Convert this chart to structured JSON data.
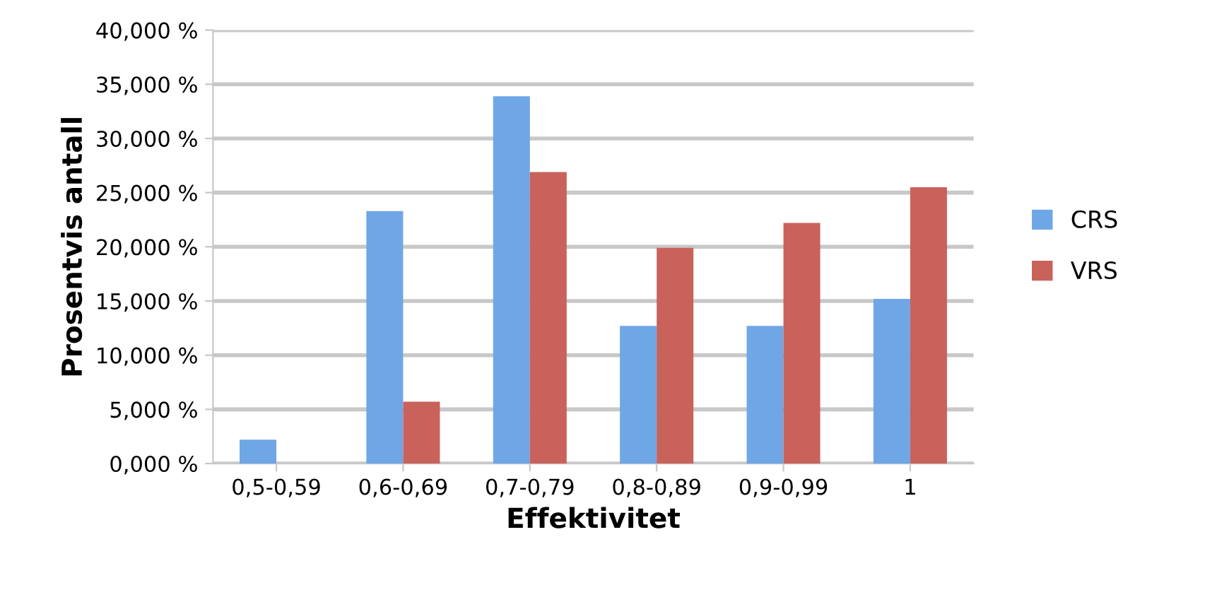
{
  "chart_data": {
    "type": "bar",
    "xlabel": "Effektivitet",
    "ylabel": "Prosentvis antall",
    "categories": [
      "0,5-0,59",
      "0,6-0,69",
      "0,7-0,79",
      "0,8-0,89",
      "0,9-0,99",
      "1"
    ],
    "series": [
      {
        "name": "CRS",
        "color": "#6fa6e6",
        "values": [
          2.2,
          23.3,
          33.9,
          12.7,
          12.7,
          15.2
        ]
      },
      {
        "name": "VRS",
        "color": "#c9625b",
        "values": [
          0,
          5.7,
          26.9,
          19.9,
          22.2,
          25.5
        ]
      }
    ],
    "ylim": [
      0,
      40
    ],
    "yticks": [
      {
        "value": 0,
        "label": "0,000 %"
      },
      {
        "value": 5,
        "label": "5,000 %"
      },
      {
        "value": 10,
        "label": "10,000 %"
      },
      {
        "value": 15,
        "label": "15,000 %"
      },
      {
        "value": 20,
        "label": "20,000 %"
      },
      {
        "value": 25,
        "label": "25,000 %"
      },
      {
        "value": 30,
        "label": "30,000 %"
      },
      {
        "value": 35,
        "label": "35,000 %"
      },
      {
        "value": 40,
        "label": "40,000 %"
      }
    ],
    "grid": "y",
    "legend": "right"
  }
}
